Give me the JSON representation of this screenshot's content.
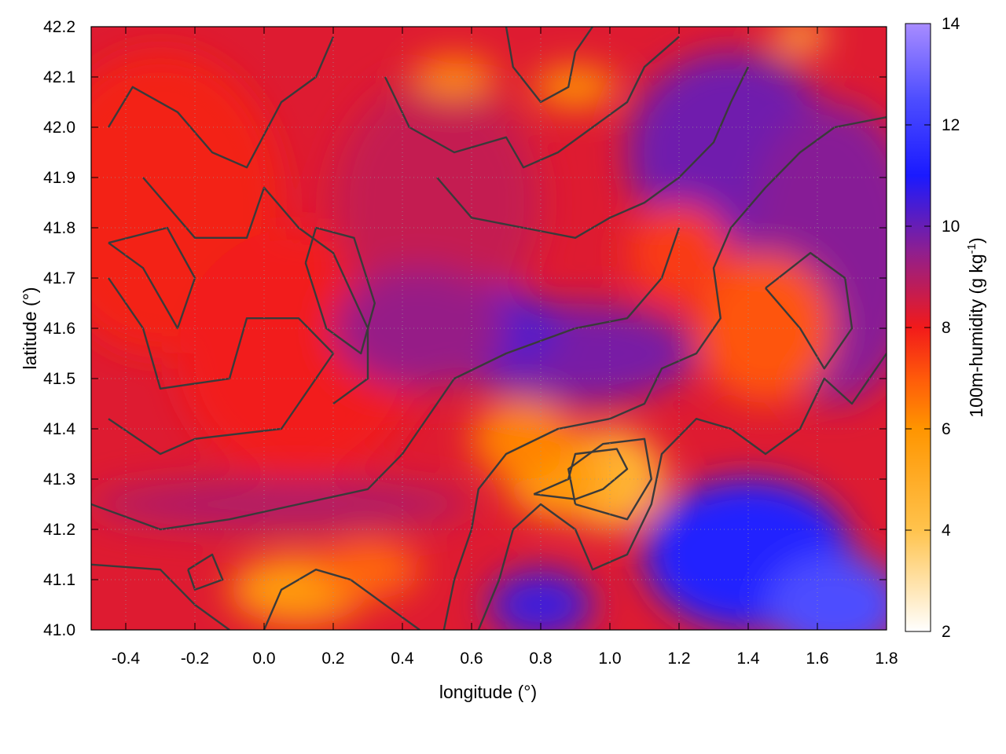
{
  "chart_data": {
    "type": "heatmap",
    "title": "",
    "xlabel": "longitude (°)",
    "ylabel": "latitude (°)",
    "xlim": [
      -0.5,
      1.8
    ],
    "ylim": [
      41.0,
      42.2
    ],
    "x_ticks": [
      -0.4,
      -0.2,
      0.0,
      0.2,
      0.4,
      0.6,
      0.8,
      1.0,
      1.2,
      1.4,
      1.6,
      1.8
    ],
    "x_tick_labels": [
      "-0.4",
      "-0.2",
      "0.0",
      "0.2",
      "0.4",
      "0.6",
      "0.8",
      "1.0",
      "1.2",
      "1.4",
      "1.6",
      "1.8"
    ],
    "y_ticks": [
      41.0,
      41.1,
      41.2,
      41.3,
      41.4,
      41.5,
      41.6,
      41.7,
      41.8,
      41.9,
      42.0,
      42.1,
      42.2
    ],
    "y_tick_labels": [
      "41.0",
      "41.1",
      "41.2",
      "41.3",
      "41.4",
      "41.5",
      "41.6",
      "41.7",
      "41.8",
      "41.9",
      "42.0",
      "42.1",
      "42.2"
    ],
    "grid": true,
    "colorbar": {
      "label_main": "100m-humidity (g kg",
      "label_sup": "-1",
      "label_end": ")",
      "range": [
        2,
        14
      ],
      "ticks": [
        2,
        4,
        6,
        8,
        10,
        12,
        14
      ],
      "tick_labels": [
        "2",
        "4",
        "6",
        "8",
        "10",
        "12",
        "14"
      ],
      "stops": [
        {
          "value": 2,
          "color": "#ffffff"
        },
        {
          "value": 4,
          "color": "#ffc34d"
        },
        {
          "value": 6,
          "color": "#ff9500"
        },
        {
          "value": 7,
          "color": "#ff5a0a"
        },
        {
          "value": 8,
          "color": "#f21a1a"
        },
        {
          "value": 9.5,
          "color": "#8f1f8f"
        },
        {
          "value": 11,
          "color": "#1a1aff"
        },
        {
          "value": 12.5,
          "color": "#4d4dff"
        },
        {
          "value": 14,
          "color": "#a88cff"
        }
      ]
    },
    "field_blobs": [
      {
        "x": -0.3,
        "y": 41.85,
        "w": 0.35,
        "h": 0.3,
        "v": 7.9
      },
      {
        "x": 0.1,
        "y": 41.55,
        "w": 0.35,
        "h": 0.25,
        "v": 8.0
      },
      {
        "x": 0.5,
        "y": 41.85,
        "w": 0.3,
        "h": 0.25,
        "v": 8.7
      },
      {
        "x": 0.9,
        "y": 41.55,
        "w": 0.35,
        "h": 0.1,
        "v": 9.8
      },
      {
        "x": 0.65,
        "y": 41.6,
        "w": 0.2,
        "h": 0.08,
        "v": 10.3
      },
      {
        "x": 1.35,
        "y": 41.95,
        "w": 0.3,
        "h": 0.2,
        "v": 9.9
      },
      {
        "x": 1.65,
        "y": 41.75,
        "w": 0.25,
        "h": 0.3,
        "v": 9.6
      },
      {
        "x": 1.0,
        "y": 41.3,
        "w": 0.16,
        "h": 0.1,
        "v": 4.6
      },
      {
        "x": 0.85,
        "y": 41.3,
        "w": 0.15,
        "h": 0.08,
        "v": 5.6
      },
      {
        "x": 0.75,
        "y": 41.38,
        "w": 0.15,
        "h": 0.08,
        "v": 6.3
      },
      {
        "x": 1.4,
        "y": 41.15,
        "w": 0.3,
        "h": 0.15,
        "v": 11.3
      },
      {
        "x": 1.65,
        "y": 41.05,
        "w": 0.2,
        "h": 0.1,
        "v": 12.5
      },
      {
        "x": 0.8,
        "y": 41.05,
        "w": 0.15,
        "h": 0.07,
        "v": 10.5
      },
      {
        "x": 1.45,
        "y": 41.6,
        "w": 0.2,
        "h": 0.15,
        "v": 7.1
      },
      {
        "x": 1.2,
        "y": 41.75,
        "w": 0.15,
        "h": 0.1,
        "v": 7.5
      },
      {
        "x": 0.1,
        "y": 41.08,
        "w": 0.2,
        "h": 0.07,
        "v": 5.8
      },
      {
        "x": 0.3,
        "y": 41.12,
        "w": 0.15,
        "h": 0.06,
        "v": 6.8
      },
      {
        "x": 0.05,
        "y": 41.25,
        "w": 0.55,
        "h": 0.05,
        "v": 9.0
      },
      {
        "x": 0.55,
        "y": 42.1,
        "w": 0.12,
        "h": 0.04,
        "v": 6.2
      },
      {
        "x": 0.9,
        "y": 42.08,
        "w": 0.12,
        "h": 0.04,
        "v": 6.0
      },
      {
        "x": 1.55,
        "y": 42.18,
        "w": 0.08,
        "h": 0.03,
        "v": 4.5
      },
      {
        "x": 0.45,
        "y": 41.6,
        "w": 0.25,
        "h": 0.12,
        "v": 9.4
      }
    ],
    "contours": [
      [
        [
          -0.45,
          42.0
        ],
        [
          -0.38,
          42.08
        ],
        [
          -0.25,
          42.03
        ],
        [
          -0.15,
          41.95
        ],
        [
          -0.05,
          41.92
        ],
        [
          0.05,
          42.05
        ],
        [
          0.15,
          42.1
        ],
        [
          0.2,
          42.18
        ]
      ],
      [
        [
          -0.35,
          41.9
        ],
        [
          -0.2,
          41.78
        ],
        [
          -0.05,
          41.78
        ],
        [
          0.0,
          41.88
        ],
        [
          0.1,
          41.8
        ],
        [
          0.2,
          41.75
        ],
        [
          0.3,
          41.6
        ],
        [
          0.3,
          41.5
        ],
        [
          0.2,
          41.45
        ]
      ],
      [
        [
          -0.45,
          41.7
        ],
        [
          -0.35,
          41.6
        ],
        [
          -0.3,
          41.48
        ],
        [
          -0.1,
          41.5
        ],
        [
          -0.05,
          41.62
        ],
        [
          0.1,
          41.62
        ],
        [
          0.2,
          41.55
        ],
        [
          0.1,
          41.45
        ],
        [
          0.05,
          41.4
        ],
        [
          -0.2,
          41.38
        ],
        [
          -0.3,
          41.35
        ],
        [
          -0.45,
          41.42
        ]
      ],
      [
        [
          -0.5,
          41.25
        ],
        [
          -0.3,
          41.2
        ],
        [
          -0.1,
          41.22
        ],
        [
          0.1,
          41.25
        ],
        [
          0.3,
          41.28
        ],
        [
          0.4,
          41.35
        ],
        [
          0.45,
          41.4
        ],
        [
          0.55,
          41.5
        ],
        [
          0.7,
          41.55
        ],
        [
          0.9,
          41.6
        ],
        [
          1.05,
          41.62
        ],
        [
          1.15,
          41.7
        ],
        [
          1.2,
          41.8
        ]
      ],
      [
        [
          -0.5,
          41.13
        ],
        [
          -0.3,
          41.12
        ],
        [
          -0.2,
          41.05
        ],
        [
          -0.1,
          41.0
        ]
      ],
      [
        [
          0.0,
          41.0
        ],
        [
          0.05,
          41.08
        ],
        [
          0.15,
          41.12
        ],
        [
          0.25,
          41.1
        ],
        [
          0.35,
          41.05
        ],
        [
          0.45,
          41.0
        ]
      ],
      [
        [
          0.52,
          41.0
        ],
        [
          0.55,
          41.1
        ],
        [
          0.6,
          41.2
        ],
        [
          0.62,
          41.28
        ],
        [
          0.7,
          41.35
        ],
        [
          0.85,
          41.4
        ],
        [
          1.0,
          41.42
        ],
        [
          1.1,
          41.45
        ],
        [
          1.15,
          41.52
        ],
        [
          1.25,
          41.55
        ],
        [
          1.32,
          41.62
        ],
        [
          1.3,
          41.72
        ],
        [
          1.35,
          41.8
        ],
        [
          1.45,
          41.88
        ],
        [
          1.55,
          41.95
        ],
        [
          1.65,
          42.0
        ],
        [
          1.8,
          42.02
        ]
      ],
      [
        [
          0.62,
          41.0
        ],
        [
          0.68,
          41.1
        ],
        [
          0.72,
          41.2
        ],
        [
          0.8,
          41.25
        ],
        [
          0.9,
          41.2
        ],
        [
          0.95,
          41.12
        ],
        [
          1.05,
          41.15
        ],
        [
          1.12,
          41.25
        ],
        [
          1.15,
          41.35
        ],
        [
          1.25,
          41.42
        ],
        [
          1.35,
          41.4
        ],
        [
          1.45,
          41.35
        ],
        [
          1.55,
          41.4
        ],
        [
          1.62,
          41.5
        ],
        [
          1.7,
          41.45
        ],
        [
          1.8,
          41.55
        ]
      ],
      [
        [
          0.9,
          41.25
        ],
        [
          1.05,
          41.22
        ],
        [
          1.12,
          41.3
        ],
        [
          1.1,
          41.38
        ],
        [
          0.98,
          41.37
        ],
        [
          0.88,
          41.32
        ],
        [
          0.9,
          41.25
        ]
      ],
      [
        [
          0.78,
          41.27
        ],
        [
          0.88,
          41.3
        ],
        [
          0.9,
          41.35
        ],
        [
          1.02,
          41.36
        ],
        [
          1.05,
          41.32
        ],
        [
          0.98,
          41.28
        ],
        [
          0.9,
          41.26
        ],
        [
          0.78,
          41.27
        ]
      ],
      [
        [
          0.35,
          42.1
        ],
        [
          0.42,
          42.0
        ],
        [
          0.55,
          41.95
        ],
        [
          0.7,
          41.98
        ],
        [
          0.75,
          41.92
        ],
        [
          0.85,
          41.95
        ],
        [
          0.95,
          42.0
        ],
        [
          1.05,
          42.05
        ],
        [
          1.1,
          42.12
        ],
        [
          1.2,
          42.18
        ]
      ],
      [
        [
          0.5,
          41.9
        ],
        [
          0.6,
          41.82
        ],
        [
          0.75,
          41.8
        ],
        [
          0.9,
          41.78
        ],
        [
          1.0,
          41.82
        ],
        [
          1.1,
          41.85
        ],
        [
          1.2,
          41.9
        ],
        [
          1.3,
          41.97
        ],
        [
          1.35,
          42.05
        ],
        [
          1.4,
          42.12
        ]
      ],
      [
        [
          0.7,
          42.2
        ],
        [
          0.72,
          42.12
        ],
        [
          0.8,
          42.05
        ],
        [
          0.88,
          42.08
        ],
        [
          0.9,
          42.15
        ],
        [
          0.95,
          42.2
        ]
      ],
      [
        [
          1.45,
          41.68
        ],
        [
          1.55,
          41.6
        ],
        [
          1.62,
          41.52
        ],
        [
          1.7,
          41.6
        ],
        [
          1.68,
          41.7
        ],
        [
          1.58,
          41.75
        ],
        [
          1.45,
          41.68
        ]
      ],
      [
        [
          -0.45,
          41.77
        ],
        [
          -0.35,
          41.72
        ],
        [
          -0.25,
          41.6
        ],
        [
          -0.2,
          41.7
        ],
        [
          -0.28,
          41.8
        ],
        [
          -0.45,
          41.77
        ]
      ],
      [
        [
          0.12,
          41.73
        ],
        [
          0.18,
          41.6
        ],
        [
          0.28,
          41.55
        ],
        [
          0.32,
          41.65
        ],
        [
          0.26,
          41.78
        ],
        [
          0.15,
          41.8
        ],
        [
          0.12,
          41.73
        ]
      ],
      [
        [
          -0.22,
          41.12
        ],
        [
          -0.15,
          41.15
        ],
        [
          -0.12,
          41.1
        ],
        [
          -0.2,
          41.08
        ],
        [
          -0.22,
          41.12
        ]
      ]
    ]
  }
}
